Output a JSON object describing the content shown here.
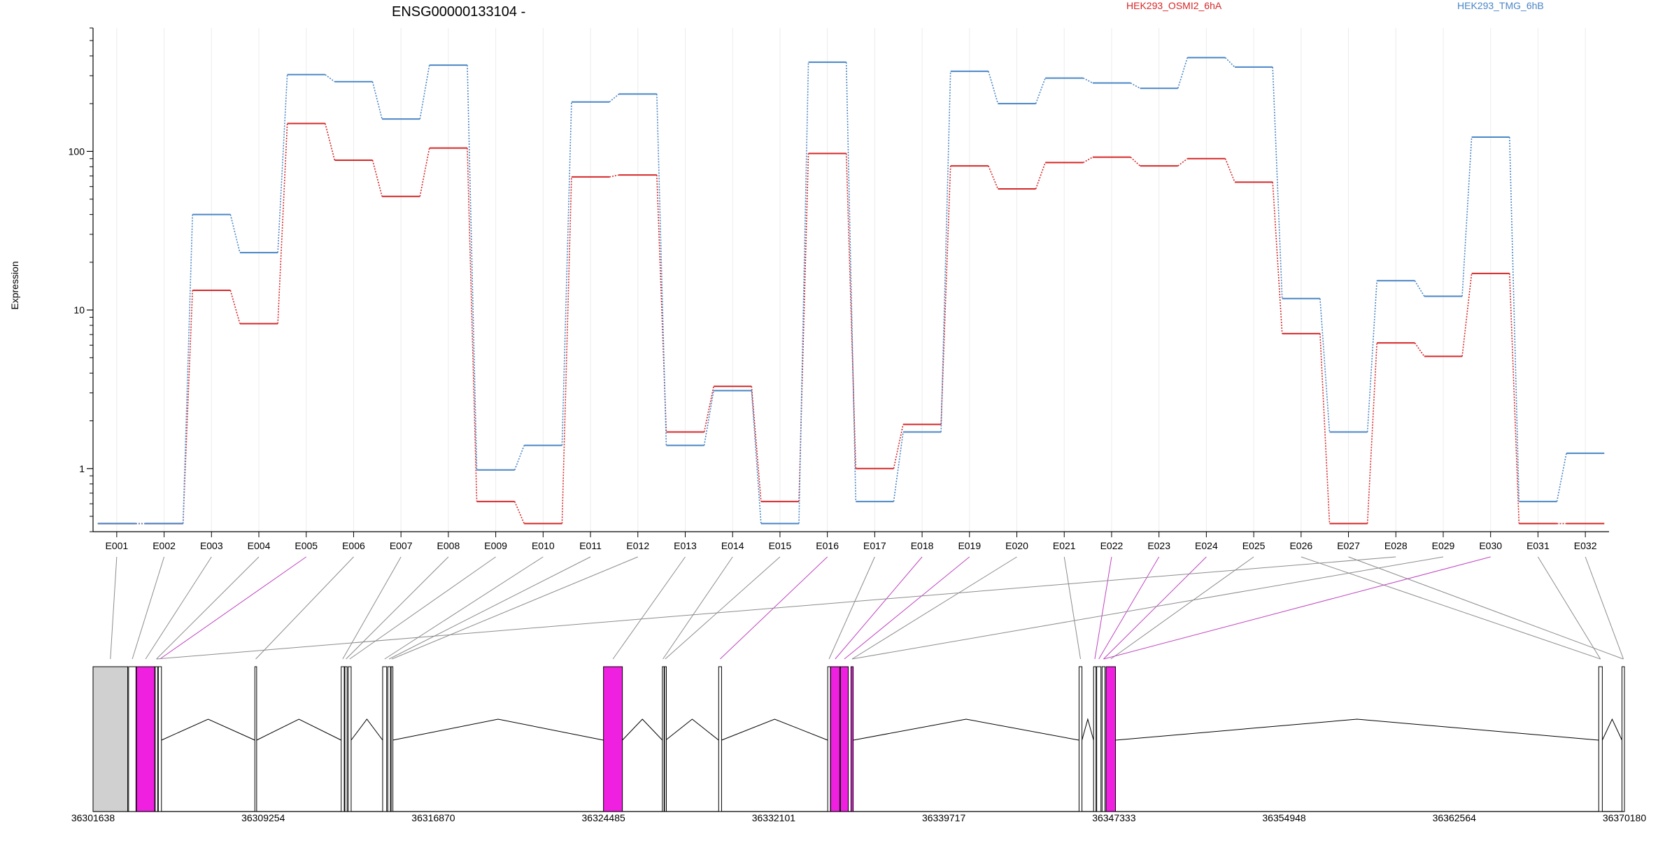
{
  "chart_data": {
    "type": "line",
    "title": "ENSG00000133104 -",
    "xlabel": "",
    "ylabel": "Expression",
    "y_scale": "log",
    "ylim": [
      0.4,
      600
    ],
    "y_ticks": [
      1,
      10,
      100
    ],
    "y_tick_labels": [
      "1",
      "10",
      "100"
    ],
    "grid": "vertical-only",
    "legend_position": "top",
    "categories": [
      "E001",
      "E002",
      "E003",
      "E004",
      "E005",
      "E006",
      "E007",
      "E008",
      "E009",
      "E010",
      "E011",
      "E012",
      "E013",
      "E014",
      "E015",
      "E016",
      "E017",
      "E018",
      "E019",
      "E020",
      "E021",
      "E022",
      "E023",
      "E024",
      "E025",
      "E026",
      "E027",
      "E028",
      "E029",
      "E030",
      "E031",
      "E032"
    ],
    "series": [
      {
        "name": "HEK293_OSMI2_6hA",
        "color": "#d62728",
        "values": [
          0.45,
          0.45,
          13.3,
          8.2,
          150,
          88,
          52,
          105,
          0.62,
          0.45,
          69,
          71,
          1.7,
          3.3,
          0.62,
          97,
          1.0,
          1.9,
          81,
          58,
          85,
          92,
          81,
          90,
          64,
          7.1,
          0.45,
          6.2,
          5.1,
          17,
          0.45,
          0.45
        ]
      },
      {
        "name": "HEK293_TMG_6hB",
        "color": "#4a86c5",
        "values": [
          0.45,
          0.45,
          40,
          23,
          305,
          275,
          160,
          350,
          0.98,
          1.4,
          205,
          230,
          1.4,
          3.1,
          0.45,
          365,
          0.62,
          1.7,
          320,
          200,
          290,
          270,
          250,
          390,
          340,
          11.8,
          1.7,
          15.3,
          12.2,
          123,
          0.62,
          1.25
        ]
      }
    ],
    "gene_model": {
      "coordinate_labels": [
        "36301638",
        "36309254",
        "36316870",
        "36324485",
        "36332101",
        "36339717",
        "36347333",
        "36354948",
        "36362564",
        "36370180"
      ],
      "highlight_color": "#f020e0",
      "exon_color": "#ffffff",
      "first_exon_color": "#d0d0d0",
      "highlighted_exons": [
        "E005",
        "E016",
        "E018",
        "E019",
        "E022",
        "E023",
        "E024",
        "E030"
      ]
    }
  }
}
